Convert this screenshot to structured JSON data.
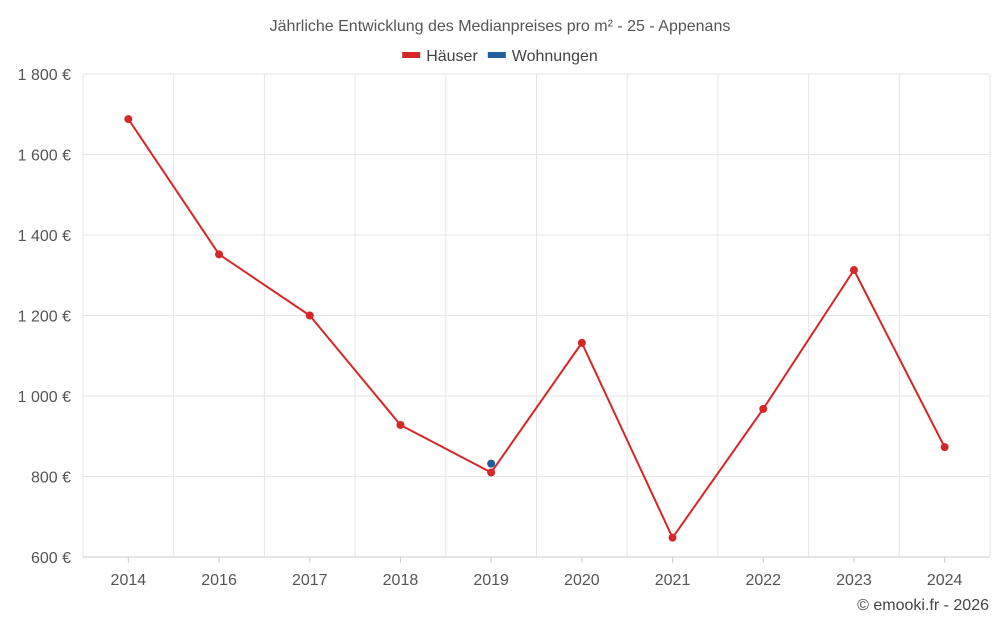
{
  "chart_data": {
    "type": "line",
    "title": "Jährliche Entwicklung des Medianpreises pro m² - 25 - Appenans",
    "categories": [
      "2014",
      "2016",
      "2017",
      "2018",
      "2019",
      "2020",
      "2021",
      "2022",
      "2023",
      "2024"
    ],
    "series": [
      {
        "name": "Häuser",
        "color": "#d62728",
        "values": [
          1688,
          1352,
          1200,
          928,
          810,
          1132,
          648,
          968,
          1313,
          873
        ]
      },
      {
        "name": "Wohnungen",
        "color": "#1f5f9e",
        "values": [
          null,
          null,
          null,
          null,
          832,
          null,
          null,
          null,
          null,
          null
        ]
      }
    ],
    "ylim": [
      600,
      1800
    ],
    "yticks": [
      600,
      800,
      1000,
      1200,
      1400,
      1600,
      1800
    ],
    "ytick_labels": [
      "600 €",
      "800 €",
      "1 000 €",
      "1 200 €",
      "1 400 €",
      "1 600 €",
      "1 800 €"
    ],
    "grid": true,
    "legend_position": "top-center"
  },
  "credit": "© emooki.fr - 2026"
}
